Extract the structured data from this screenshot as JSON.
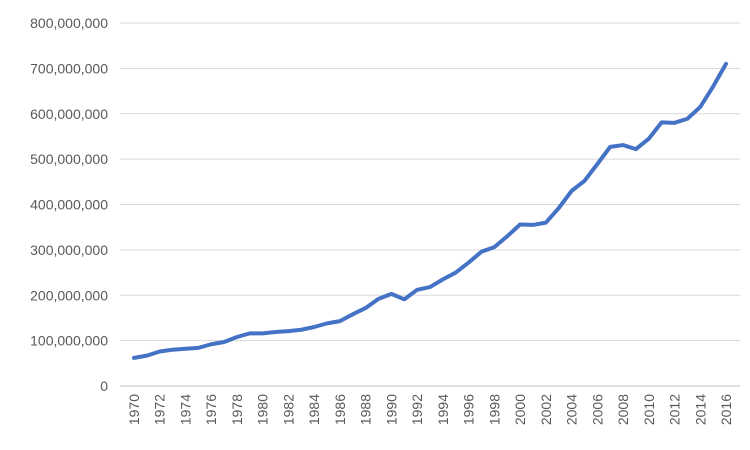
{
  "chart_data": {
    "type": "line",
    "title": "",
    "xlabel": "",
    "ylabel": "",
    "x": [
      1970,
      1971,
      1972,
      1973,
      1974,
      1975,
      1976,
      1977,
      1978,
      1979,
      1980,
      1981,
      1982,
      1983,
      1984,
      1985,
      1986,
      1987,
      1988,
      1989,
      1990,
      1991,
      1992,
      1993,
      1994,
      1995,
      1996,
      1997,
      1998,
      1999,
      2000,
      2001,
      2002,
      2003,
      2004,
      2005,
      2006,
      2007,
      2008,
      2009,
      2010,
      2011,
      2012,
      2013,
      2014,
      2015,
      2016
    ],
    "xtick_labels": [
      "1970",
      "1972",
      "1974",
      "1976",
      "1978",
      "1980",
      "1982",
      "1984",
      "1986",
      "1988",
      "1990",
      "1992",
      "1994",
      "1996",
      "1998",
      "2000",
      "2002",
      "2004",
      "2006",
      "2008",
      "2010",
      "2012",
      "2014",
      "2016"
    ],
    "ylim": [
      0,
      800000000
    ],
    "ytick_labels": [
      "0",
      "100,000,000",
      "200,000,000",
      "300,000,000",
      "400,000,000",
      "500,000,000",
      "600,000,000",
      "700,000,000",
      "800,000,000"
    ],
    "grid": "horizontal",
    "series": [
      {
        "color": "#4472c4",
        "values": [
          62000000,
          67000000,
          76000000,
          80000000,
          82000000,
          84000000,
          92000000,
          97000000,
          108000000,
          116000000,
          116000000,
          119000000,
          121000000,
          124000000,
          130000000,
          138000000,
          143000000,
          158000000,
          172000000,
          192000000,
          203000000,
          191000000,
          212000000,
          218000000,
          235000000,
          250000000,
          272000000,
          296000000,
          306000000,
          330000000,
          356000000,
          355000000,
          360000000,
          392000000,
          430000000,
          452000000,
          489000000,
          527000000,
          531000000,
          522000000,
          545000000,
          581000000,
          580000000,
          589000000,
          615000000,
          660000000,
          710000000
        ]
      }
    ]
  }
}
